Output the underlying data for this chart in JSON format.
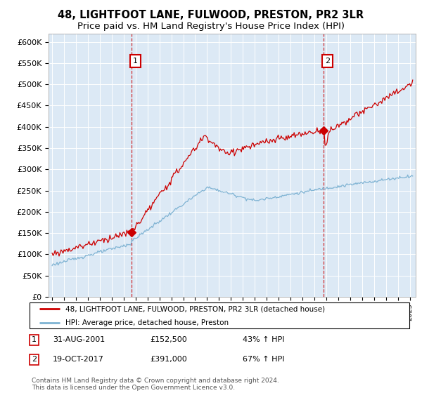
{
  "title": "48, LIGHTFOOT LANE, FULWOOD, PRESTON, PR2 3LR",
  "subtitle": "Price paid vs. HM Land Registry's House Price Index (HPI)",
  "ylim": [
    0,
    620000
  ],
  "xlim_start": 1994.7,
  "xlim_end": 2025.5,
  "yticks": [
    0,
    50000,
    100000,
    150000,
    200000,
    250000,
    300000,
    350000,
    400000,
    450000,
    500000,
    550000,
    600000
  ],
  "ytick_labels": [
    "£0",
    "£50K",
    "£100K",
    "£150K",
    "£200K",
    "£250K",
    "£300K",
    "£350K",
    "£400K",
    "£450K",
    "£500K",
    "£550K",
    "£600K"
  ],
  "sale1_x": 2001.67,
  "sale1_y": 152500,
  "sale2_x": 2017.8,
  "sale2_y": 391000,
  "line1_color": "#cc0000",
  "line2_color": "#7fb3d3",
  "plot_bg": "#dce9f5",
  "grid_color": "#ffffff",
  "legend1": "48, LIGHTFOOT LANE, FULWOOD, PRESTON, PR2 3LR (detached house)",
  "legend2": "HPI: Average price, detached house, Preston",
  "sale1_date": "31-AUG-2001",
  "sale1_price": "£152,500",
  "sale1_hpi": "43% ↑ HPI",
  "sale2_date": "19-OCT-2017",
  "sale2_price": "£391,000",
  "sale2_hpi": "67% ↑ HPI",
  "footnote": "Contains HM Land Registry data © Crown copyright and database right 2024.\nThis data is licensed under the Open Government Licence v3.0.",
  "title_fontsize": 10.5,
  "subtitle_fontsize": 9.5
}
